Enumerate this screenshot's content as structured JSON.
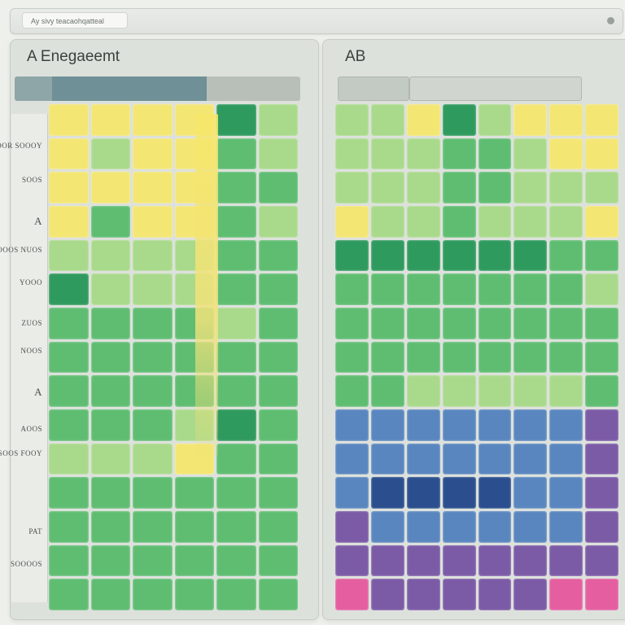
{
  "topbar": {
    "url_text": "Ay sivy teacaohqatteal",
    "menu_icon": "dot-icon"
  },
  "left_panel": {
    "title": "A Enegaeemt",
    "row_labels": [
      "SOOR SOOOY",
      "SOOS",
      "A",
      "OOOS NUOS",
      "YOOO",
      "ZUOS",
      "NOOS",
      "A",
      "AOOS",
      "SOOS FOOY",
      "PAT",
      "SOOOOS"
    ]
  },
  "right_panel": {
    "title": "AB"
  },
  "colors": {
    "yellow": "#f3e673",
    "light_green": "#a9d98a",
    "green": "#5fbd72",
    "dark_green": "#2f9a5e",
    "blue": "#5a86bf",
    "navy": "#2b4f8e",
    "purple": "#7b5aa6",
    "pink": "#e45ea0"
  },
  "heatmap_left": {
    "cols": 6,
    "rows": 15,
    "cells": [
      [
        "yellow",
        "yellow",
        "yellow",
        "yellow",
        "dark_green",
        "light_green"
      ],
      [
        "yellow",
        "light_green",
        "yellow",
        "yellow",
        "green",
        "light_green"
      ],
      [
        "yellow",
        "yellow",
        "yellow",
        "yellow",
        "green",
        "green"
      ],
      [
        "yellow",
        "green",
        "yellow",
        "yellow",
        "green",
        "light_green"
      ],
      [
        "light_green",
        "light_green",
        "light_green",
        "light_green",
        "green",
        "green"
      ],
      [
        "dark_green",
        "light_green",
        "light_green",
        "light_green",
        "green",
        "green"
      ],
      [
        "green",
        "green",
        "green",
        "green",
        "light_green",
        "green"
      ],
      [
        "green",
        "green",
        "green",
        "green",
        "green",
        "green"
      ],
      [
        "green",
        "green",
        "green",
        "green",
        "green",
        "green"
      ],
      [
        "green",
        "green",
        "green",
        "light_green",
        "dark_green",
        "green"
      ],
      [
        "light_green",
        "light_green",
        "light_green",
        "yellow",
        "green",
        "green"
      ],
      [
        "green",
        "green",
        "green",
        "green",
        "green",
        "green"
      ],
      [
        "green",
        "green",
        "green",
        "green",
        "green",
        "green"
      ],
      [
        "green",
        "green",
        "green",
        "green",
        "green",
        "green"
      ],
      [
        "green",
        "green",
        "green",
        "green",
        "green",
        "green"
      ]
    ]
  },
  "heatmap_right": {
    "cols": 8,
    "rows": 15,
    "cells": [
      [
        "light_green",
        "light_green",
        "yellow",
        "dark_green",
        "light_green",
        "yellow",
        "yellow",
        "yellow"
      ],
      [
        "light_green",
        "light_green",
        "light_green",
        "green",
        "green",
        "light_green",
        "yellow",
        "yellow"
      ],
      [
        "light_green",
        "light_green",
        "light_green",
        "green",
        "green",
        "light_green",
        "light_green",
        "light_green"
      ],
      [
        "yellow",
        "light_green",
        "light_green",
        "green",
        "light_green",
        "light_green",
        "light_green",
        "yellow"
      ],
      [
        "dark_green",
        "dark_green",
        "dark_green",
        "dark_green",
        "dark_green",
        "dark_green",
        "green",
        "green"
      ],
      [
        "green",
        "green",
        "green",
        "green",
        "green",
        "green",
        "green",
        "light_green"
      ],
      [
        "green",
        "green",
        "green",
        "green",
        "green",
        "green",
        "green",
        "green"
      ],
      [
        "green",
        "green",
        "green",
        "green",
        "green",
        "green",
        "green",
        "green"
      ],
      [
        "green",
        "green",
        "light_green",
        "light_green",
        "light_green",
        "light_green",
        "light_green",
        "green"
      ],
      [
        "blue",
        "blue",
        "blue",
        "blue",
        "blue",
        "blue",
        "blue",
        "purple"
      ],
      [
        "blue",
        "blue",
        "blue",
        "blue",
        "blue",
        "blue",
        "blue",
        "purple"
      ],
      [
        "blue",
        "navy",
        "navy",
        "navy",
        "navy",
        "blue",
        "blue",
        "purple"
      ],
      [
        "purple",
        "blue",
        "blue",
        "blue",
        "blue",
        "blue",
        "blue",
        "purple"
      ],
      [
        "purple",
        "purple",
        "purple",
        "purple",
        "purple",
        "purple",
        "purple",
        "purple"
      ],
      [
        "pink",
        "purple",
        "purple",
        "purple",
        "purple",
        "purple",
        "pink",
        "pink"
      ]
    ]
  }
}
